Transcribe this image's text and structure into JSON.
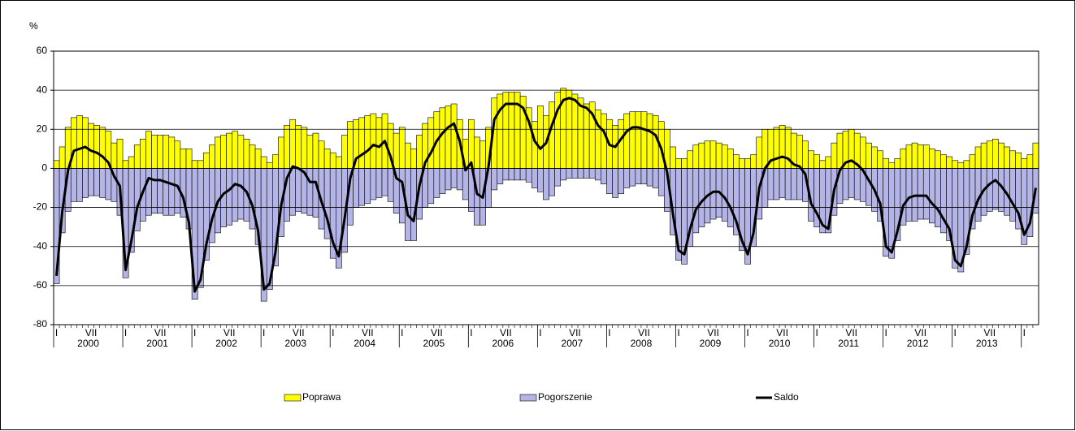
{
  "chart_data": {
    "type": "bar",
    "y_label": "%",
    "categories": [
      "I",
      null,
      null,
      null,
      null,
      null,
      "VII",
      null,
      null,
      null,
      null,
      null,
      "I",
      null,
      null,
      null,
      null,
      null,
      "VII",
      null,
      null,
      null,
      null,
      null,
      "I",
      null,
      null,
      null,
      null,
      null,
      "VII",
      null,
      null,
      null,
      null,
      null,
      "I",
      null,
      null,
      null,
      null,
      null,
      "VII",
      null,
      null,
      null,
      null,
      null,
      "I",
      null,
      null,
      null,
      null,
      null,
      "VII",
      null,
      null,
      null,
      null,
      null,
      "I",
      null,
      null,
      null,
      null,
      null,
      "VII",
      null,
      null,
      null,
      null,
      null,
      "I",
      null,
      null,
      null,
      null,
      null,
      "VII",
      null,
      null,
      null,
      null,
      null,
      "I",
      null,
      null,
      null,
      null,
      null,
      "VII",
      null,
      null,
      null,
      null,
      null,
      "I",
      null,
      null,
      null,
      null,
      null,
      "VII",
      null,
      null,
      null,
      null,
      null,
      "I",
      null,
      null,
      null,
      null,
      null,
      "VII",
      null,
      null,
      null,
      null,
      null,
      "I",
      null,
      null,
      null,
      null,
      null,
      "VII",
      null,
      null,
      null,
      null,
      null,
      "I",
      null,
      null,
      null,
      null,
      null,
      "VII",
      null,
      null,
      null,
      null,
      null,
      "I",
      null,
      null,
      null,
      null,
      null,
      "VII",
      null,
      null,
      null,
      null,
      null,
      "I",
      null,
      null,
      null,
      null,
      null,
      "VII",
      null,
      null,
      null,
      null,
      null,
      "I",
      null,
      null
    ],
    "year_labels": [
      "2000",
      "2001",
      "2002",
      "2003",
      "2004",
      "2005",
      "2006",
      "2007",
      "2008",
      "2009",
      "2010",
      "2011",
      "2012",
      "2013"
    ],
    "series": [
      {
        "name": "Poprawa",
        "color": "#ffff00",
        "values": [
          4,
          11,
          21,
          26,
          27,
          26,
          23,
          22,
          21,
          19,
          13,
          15,
          4,
          6,
          12,
          15,
          19,
          17,
          17,
          17,
          16,
          14,
          10,
          10,
          4,
          4,
          8,
          12,
          16,
          17,
          18,
          19,
          17,
          15,
          12,
          10,
          6,
          3,
          7,
          16,
          22,
          25,
          22,
          21,
          17,
          18,
          14,
          10,
          8,
          6,
          17,
          24,
          25,
          26,
          27,
          28,
          26,
          28,
          23,
          18,
          21,
          13,
          10,
          17,
          23,
          26,
          29,
          31,
          32,
          33,
          25,
          15,
          25,
          16,
          14,
          21,
          36,
          38,
          39,
          39,
          39,
          37,
          31,
          24,
          32,
          27,
          34,
          39,
          41,
          40,
          38,
          36,
          33,
          34,
          30,
          28,
          25,
          22,
          25,
          28,
          29,
          29,
          29,
          28,
          27,
          24,
          20,
          11,
          5,
          5,
          9,
          12,
          13,
          14,
          14,
          13,
          12,
          10,
          7,
          5,
          5,
          7,
          16,
          20,
          20,
          21,
          22,
          21,
          18,
          17,
          14,
          9,
          7,
          4,
          6,
          13,
          18,
          19,
          20,
          18,
          16,
          13,
          11,
          9,
          5,
          3,
          5,
          10,
          12,
          13,
          12,
          12,
          10,
          9,
          7,
          6,
          4,
          3,
          4,
          7,
          11,
          13,
          14,
          15,
          13,
          11,
          9,
          8,
          5,
          7,
          13
        ]
      },
      {
        "name": "Pogorszenie",
        "color": "#b4b4e6",
        "values": [
          -59,
          -33,
          -22,
          -17,
          -17,
          -15,
          -14,
          -14,
          -15,
          -16,
          -17,
          -24,
          -56,
          -43,
          -32,
          -27,
          -24,
          -23,
          -23,
          -24,
          -24,
          -23,
          -25,
          -31,
          -67,
          -61,
          -47,
          -38,
          -33,
          -30,
          -29,
          -27,
          -26,
          -27,
          -31,
          -39,
          -68,
          -62,
          -50,
          -35,
          -27,
          -24,
          -22,
          -23,
          -24,
          -25,
          -31,
          -36,
          -46,
          -51,
          -43,
          -29,
          -20,
          -19,
          -18,
          -16,
          -15,
          -14,
          -17,
          -23,
          -28,
          -37,
          -37,
          -26,
          -20,
          -18,
          -15,
          -13,
          -11,
          -10,
          -11,
          -16,
          -22,
          -29,
          -29,
          -20,
          -11,
          -8,
          -6,
          -6,
          -6,
          -6,
          -7,
          -10,
          -12,
          -16,
          -14,
          -9,
          -6,
          -5,
          -5,
          -5,
          -5,
          -5,
          -6,
          -8,
          -13,
          -15,
          -13,
          -10,
          -9,
          -8,
          -8,
          -9,
          -10,
          -14,
          -22,
          -34,
          -47,
          -49,
          -40,
          -33,
          -30,
          -28,
          -26,
          -25,
          -27,
          -30,
          -34,
          -42,
          -49,
          -40,
          -26,
          -20,
          -16,
          -16,
          -15,
          -16,
          -16,
          -16,
          -17,
          -27,
          -30,
          -33,
          -33,
          -24,
          -18,
          -16,
          -15,
          -16,
          -17,
          -19,
          -22,
          -27,
          -45,
          -46,
          -37,
          -29,
          -27,
          -27,
          -26,
          -26,
          -28,
          -30,
          -33,
          -37,
          -51,
          -53,
          -44,
          -31,
          -27,
          -24,
          -22,
          -21,
          -22,
          -24,
          -27,
          -31,
          -39,
          -35,
          -23
        ]
      },
      {
        "name": "Saldo",
        "color": "#000000",
        "type": "line",
        "values": [
          -55,
          -22,
          -1,
          9,
          10,
          11,
          9,
          8,
          6,
          3,
          -4,
          -9,
          -52,
          -37,
          -20,
          -12,
          -5,
          -6,
          -6,
          -7,
          -8,
          -9,
          -15,
          -28,
          -63,
          -57,
          -39,
          -26,
          -17,
          -13,
          -11,
          -8,
          -9,
          -12,
          -19,
          -32,
          -62,
          -59,
          -43,
          -19,
          -5,
          1,
          0,
          -2,
          -7,
          -7,
          -17,
          -26,
          -38,
          -45,
          -26,
          -5,
          5,
          7,
          9,
          12,
          11,
          14,
          6,
          -5,
          -7,
          -24,
          -27,
          -9,
          3,
          8,
          14,
          18,
          21,
          23,
          14,
          -1,
          3,
          -13,
          -15,
          1,
          25,
          30,
          33,
          33,
          33,
          31,
          24,
          14,
          10,
          13,
          22,
          30,
          35,
          36,
          35,
          32,
          31,
          28,
          22,
          19,
          12,
          11,
          15,
          19,
          21,
          21,
          20,
          19,
          17,
          10,
          -2,
          -23,
          -42,
          -44,
          -31,
          -21,
          -17,
          -14,
          -12,
          -12,
          -15,
          -20,
          -27,
          -37,
          -44,
          -33,
          -10,
          0,
          4,
          5,
          6,
          5,
          2,
          1,
          -3,
          -18,
          -23,
          -29,
          -31,
          -11,
          -1,
          3,
          4,
          2,
          -1,
          -6,
          -11,
          -18,
          -40,
          -43,
          -32,
          -19,
          -15,
          -14,
          -14,
          -14,
          -18,
          -21,
          -26,
          -31,
          -47,
          -50,
          -40,
          -24,
          -16,
          -11,
          -8,
          -6,
          -9,
          -13,
          -18,
          -23,
          -34,
          -28,
          -10
        ]
      }
    ],
    "ylim": [
      -80,
      60
    ],
    "yticks": [
      -80,
      -60,
      -40,
      -20,
      0,
      20,
      40,
      60
    ],
    "grid": true,
    "legend": "bottom"
  }
}
